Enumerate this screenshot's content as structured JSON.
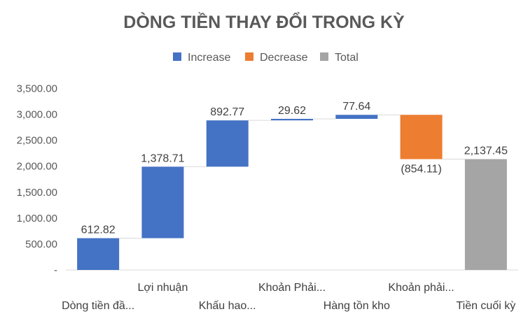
{
  "chart_data": {
    "type": "waterfall",
    "title": "DÒNG TIỀN THAY ĐỔI TRONG KỲ",
    "xlabel": "",
    "ylabel": "",
    "ylim": [
      0,
      3500
    ],
    "legend": {
      "position": "top",
      "entries": [
        {
          "key": "increase",
          "label": "Increase",
          "color": "#4472C4"
        },
        {
          "key": "decrease",
          "label": "Decrease",
          "color": "#ED7D31"
        },
        {
          "key": "total",
          "label": "Total",
          "color": "#A5A5A5"
        }
      ]
    },
    "y_ticks": [
      {
        "value": 0,
        "label": "-"
      },
      {
        "value": 500,
        "label": "500.00"
      },
      {
        "value": 1000,
        "label": "1,000.00"
      },
      {
        "value": 1500,
        "label": "1,500.00"
      },
      {
        "value": 2000,
        "label": "2,000.00"
      },
      {
        "value": 2500,
        "label": "2,500.00"
      },
      {
        "value": 3000,
        "label": "3,000.00"
      },
      {
        "value": 3500,
        "label": "3,500.00"
      }
    ],
    "categories": [
      {
        "label": "Dòng tiền đầ...",
        "value": 612.82,
        "value_label": "612.82",
        "kind": "increase"
      },
      {
        "label": "Lợi nhuận",
        "value": 1378.71,
        "value_label": "1,378.71",
        "kind": "increase"
      },
      {
        "label": "Khấu hao...",
        "value": 892.77,
        "value_label": "892.77",
        "kind": "increase"
      },
      {
        "label": "Khoản Phải...",
        "value": 29.62,
        "value_label": "29.62",
        "kind": "increase"
      },
      {
        "label": "Hàng tồn kho",
        "value": 77.64,
        "value_label": "77.64",
        "kind": "increase"
      },
      {
        "label": "Khoản phải...",
        "value": -854.11,
        "value_label": "(854.11)",
        "kind": "decrease"
      },
      {
        "label": "Tiền cuối kỳ",
        "value": 2137.45,
        "value_label": "2,137.45",
        "kind": "total"
      }
    ],
    "colors": {
      "increase": "#4472C4",
      "decrease": "#ED7D31",
      "total": "#A5A5A5",
      "axis": "#D9D9D9",
      "connector": "#D9D9D9"
    }
  }
}
